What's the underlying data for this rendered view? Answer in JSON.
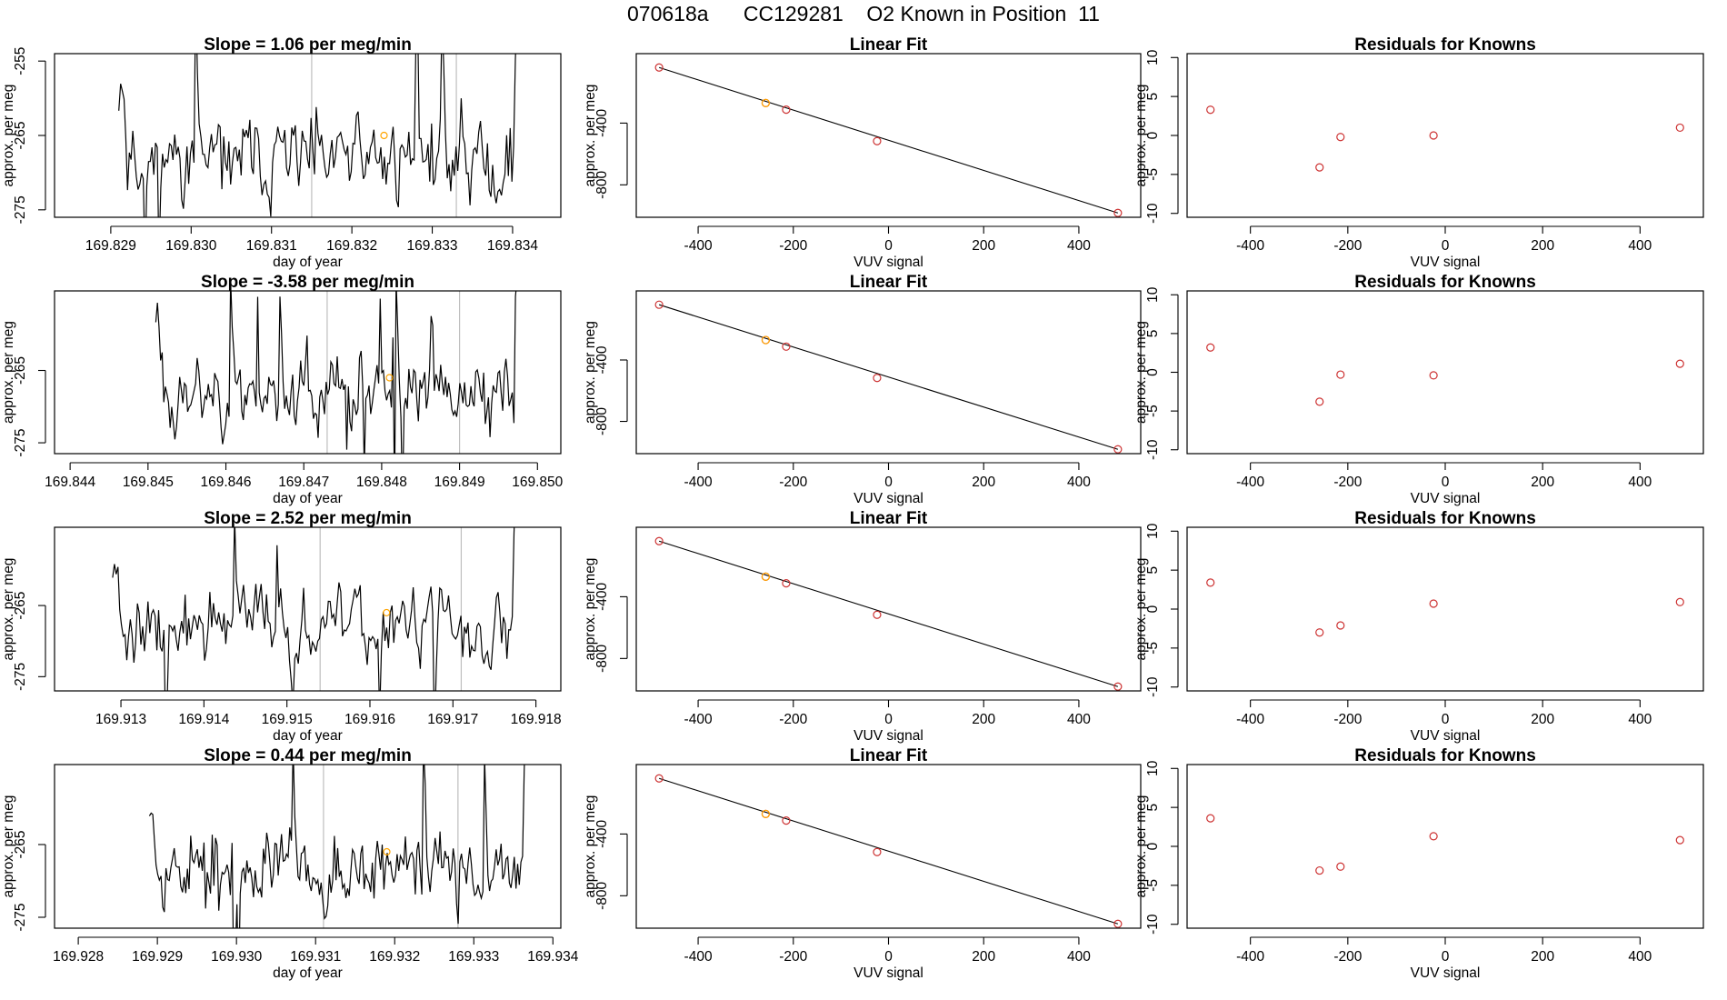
{
  "figure": {
    "title": "070618a      CC129281    O2 Known in Position  11"
  },
  "style": {
    "line_color": "#000000",
    "point_color": "#cd3333",
    "highlight_color": "#ffa500",
    "marker_color": "#bebebe"
  },
  "chart_data": [
    {
      "type": "line",
      "row": 0,
      "kind": "timeseries",
      "title": "Slope =  1.06  per meg/min",
      "xlabel": "day of year",
      "ylabel": "approx. per meg",
      "xlim": [
        169.8283,
        169.8346
      ],
      "ylim": [
        -276,
        -254
      ],
      "xticks": [
        169.829,
        169.83,
        169.831,
        169.832,
        169.833,
        169.834
      ],
      "xtick_labels": [
        "169.829",
        "169.830",
        "169.831",
        "169.832",
        "169.833",
        "169.834"
      ],
      "yticks": [
        -255,
        -265,
        -275
      ],
      "ytick_labels": [
        "-255",
        "-265",
        "-275"
      ],
      "vlines": [
        169.8315,
        169.8333
      ],
      "highlight_point": [
        169.8324,
        -265
      ],
      "trace_start": 169.8291,
      "trace_end": 169.8341,
      "seed": 11
    },
    {
      "type": "line",
      "row": 0,
      "kind": "fit",
      "title": "Linear Fit",
      "xlabel": "VUV signal",
      "ylabel": "approx. per meg",
      "xlim": [
        -530,
        530
      ],
      "ylim": [
        -1010,
        50
      ],
      "xticks": [
        -400,
        -200,
        0,
        200,
        400
      ],
      "xtick_labels": [
        "-400",
        "-200",
        "0",
        "200",
        "400"
      ],
      "yticks": [
        -400,
        -800
      ],
      "ytick_labels": [
        "-400",
        "-800"
      ],
      "x": [
        -482,
        -258,
        -215,
        -24,
        482
      ],
      "y": [
        -40,
        -270,
        -313,
        -517,
        -982
      ],
      "highlight_index": 1,
      "fit_line": [
        [
          -482,
          -40
        ],
        [
          482,
          -982
        ]
      ]
    },
    {
      "type": "scatter",
      "row": 0,
      "kind": "residual",
      "title": "Residuals for Knowns",
      "xlabel": "VUV signal",
      "ylabel": "approx. per meg",
      "xlim": [
        -530,
        530
      ],
      "ylim": [
        -10.5,
        10.5
      ],
      "xticks": [
        -400,
        -200,
        0,
        200,
        400
      ],
      "xtick_labels": [
        "-400",
        "-200",
        "0",
        "200",
        "400"
      ],
      "yticks": [
        10,
        5,
        0,
        -5,
        -10
      ],
      "ytick_labels": [
        "10",
        "5",
        "0",
        "-5",
        "-10"
      ],
      "x": [
        -482,
        -258,
        -215,
        -24,
        482
      ],
      "y": [
        3.3,
        -4.1,
        -0.2,
        0.0,
        1.0
      ]
    },
    {
      "type": "line",
      "row": 1,
      "kind": "timeseries",
      "title": "Slope =  -3.58  per meg/min",
      "xlabel": "day of year",
      "ylabel": "approx. per meg",
      "xlim": [
        169.8438,
        169.8503
      ],
      "ylim": [
        -276.5,
        -254
      ],
      "xticks": [
        169.844,
        169.845,
        169.846,
        169.847,
        169.848,
        169.849,
        169.85
      ],
      "xtick_labels": [
        "169.844",
        "169.845",
        "169.846",
        "169.847",
        "169.848",
        "169.849",
        "169.850"
      ],
      "yticks": [
        -265,
        -275
      ],
      "ytick_labels": [
        "-265",
        "-275"
      ],
      "vlines": [
        169.8473,
        169.849
      ],
      "highlight_point": [
        169.8481,
        -266
      ],
      "trace_start": 169.8451,
      "trace_end": 169.8498,
      "seed": 23
    },
    {
      "type": "line",
      "row": 1,
      "kind": "fit",
      "title": "Linear Fit",
      "xlabel": "VUV signal",
      "ylabel": "approx. per meg",
      "xlim": [
        -530,
        530
      ],
      "ylim": [
        -1010,
        50
      ],
      "xticks": [
        -400,
        -200,
        0,
        200,
        400
      ],
      "xtick_labels": [
        "-400",
        "-200",
        "0",
        "200",
        "400"
      ],
      "yticks": [
        -400,
        -800
      ],
      "ytick_labels": [
        "-400",
        "-800"
      ],
      "x": [
        -482,
        -258,
        -215,
        -24,
        482
      ],
      "y": [
        -40,
        -270,
        -313,
        -517,
        -982
      ],
      "highlight_index": 1,
      "fit_line": [
        [
          -482,
          -40
        ],
        [
          482,
          -982
        ]
      ]
    },
    {
      "type": "scatter",
      "row": 1,
      "kind": "residual",
      "title": "Residuals for Knowns",
      "xlabel": "VUV signal",
      "ylabel": "approx. per meg",
      "xlim": [
        -530,
        530
      ],
      "ylim": [
        -10.5,
        10.5
      ],
      "xticks": [
        -400,
        -200,
        0,
        200,
        400
      ],
      "xtick_labels": [
        "-400",
        "-200",
        "0",
        "200",
        "400"
      ],
      "yticks": [
        10,
        5,
        0,
        -5,
        -10
      ],
      "ytick_labels": [
        "10",
        "5",
        "0",
        "-5",
        "-10"
      ],
      "x": [
        -482,
        -258,
        -215,
        -24,
        482
      ],
      "y": [
        3.2,
        -3.8,
        -0.3,
        -0.4,
        1.1
      ]
    },
    {
      "type": "line",
      "row": 2,
      "kind": "timeseries",
      "title": "Slope =  2.52  per meg/min",
      "xlabel": "day of year",
      "ylabel": "approx. per meg",
      "xlim": [
        169.9122,
        169.9183
      ],
      "ylim": [
        -277,
        -254
      ],
      "xticks": [
        169.913,
        169.914,
        169.915,
        169.916,
        169.917,
        169.918
      ],
      "xtick_labels": [
        "169.913",
        "169.914",
        "169.915",
        "169.916",
        "169.917",
        "169.918"
      ],
      "yticks": [
        -265,
        -275
      ],
      "ytick_labels": [
        "-265",
        "-275"
      ],
      "vlines": [
        169.9154,
        169.9171
      ],
      "highlight_point": [
        169.9162,
        -266
      ],
      "trace_start": 169.9129,
      "trace_end": 169.9178,
      "seed": 37
    },
    {
      "type": "line",
      "row": 2,
      "kind": "fit",
      "title": "Linear Fit",
      "xlabel": "VUV signal",
      "ylabel": "approx. per meg",
      "xlim": [
        -530,
        530
      ],
      "ylim": [
        -1010,
        50
      ],
      "xticks": [
        -400,
        -200,
        0,
        200,
        400
      ],
      "xtick_labels": [
        "-400",
        "-200",
        "0",
        "200",
        "400"
      ],
      "yticks": [
        -400,
        -800
      ],
      "ytick_labels": [
        "-400",
        "-800"
      ],
      "x": [
        -482,
        -258,
        -215,
        -24,
        482
      ],
      "y": [
        -40,
        -270,
        -313,
        -517,
        -982
      ],
      "highlight_index": 1,
      "fit_line": [
        [
          -482,
          -40
        ],
        [
          482,
          -982
        ]
      ]
    },
    {
      "type": "scatter",
      "row": 2,
      "kind": "residual",
      "title": "Residuals for Knowns",
      "xlabel": "VUV signal",
      "ylabel": "approx. per meg",
      "xlim": [
        -530,
        530
      ],
      "ylim": [
        -10.5,
        10.5
      ],
      "xticks": [
        -400,
        -200,
        0,
        200,
        400
      ],
      "xtick_labels": [
        "-400",
        "-200",
        "0",
        "200",
        "400"
      ],
      "yticks": [
        10,
        5,
        0,
        -5,
        -10
      ],
      "ytick_labels": [
        "10",
        "5",
        "0",
        "-5",
        "-10"
      ],
      "x": [
        -482,
        -258,
        -215,
        -24,
        482
      ],
      "y": [
        3.4,
        -3.0,
        -2.1,
        0.7,
        0.9
      ]
    },
    {
      "type": "line",
      "row": 3,
      "kind": "timeseries",
      "title": "Slope =  0.44  per meg/min",
      "xlabel": "day of year",
      "ylabel": "approx. per meg",
      "xlim": [
        169.9277,
        169.9341
      ],
      "ylim": [
        -276.5,
        -254
      ],
      "xticks": [
        169.928,
        169.929,
        169.93,
        169.931,
        169.932,
        169.933,
        169.934
      ],
      "xtick_labels": [
        "169.928",
        "169.929",
        "169.930",
        "169.931",
        "169.932",
        "169.933",
        "169.934"
      ],
      "yticks": [
        -265,
        -275
      ],
      "ytick_labels": [
        "-265",
        "-275"
      ],
      "vlines": [
        169.9311,
        169.9328
      ],
      "highlight_point": [
        169.9319,
        -266
      ],
      "trace_start": 169.9289,
      "trace_end": 169.9337,
      "seed": 53
    },
    {
      "type": "line",
      "row": 3,
      "kind": "fit",
      "title": "Linear Fit",
      "xlabel": "VUV signal",
      "ylabel": "approx. per meg",
      "xlim": [
        -530,
        530
      ],
      "ylim": [
        -1010,
        50
      ],
      "xticks": [
        -400,
        -200,
        0,
        200,
        400
      ],
      "xtick_labels": [
        "-400",
        "-200",
        "0",
        "200",
        "400"
      ],
      "yticks": [
        -400,
        -800
      ],
      "ytick_labels": [
        "-400",
        "-800"
      ],
      "x": [
        -482,
        -258,
        -215,
        -24,
        482
      ],
      "y": [
        -40,
        -270,
        -313,
        -517,
        -982
      ],
      "highlight_index": 1,
      "fit_line": [
        [
          -482,
          -40
        ],
        [
          482,
          -982
        ]
      ]
    },
    {
      "type": "scatter",
      "row": 3,
      "kind": "residual",
      "title": "Residuals for Knowns",
      "xlabel": "VUV signal",
      "ylabel": "approx. per meg",
      "xlim": [
        -530,
        530
      ],
      "ylim": [
        -10.5,
        10.5
      ],
      "xticks": [
        -400,
        -200,
        0,
        200,
        400
      ],
      "xtick_labels": [
        "-400",
        "-200",
        "0",
        "200",
        "400"
      ],
      "yticks": [
        10,
        5,
        0,
        -5,
        -10
      ],
      "ytick_labels": [
        "10",
        "5",
        "0",
        "-5",
        "-10"
      ],
      "x": [
        -482,
        -258,
        -215,
        -24,
        482
      ],
      "y": [
        3.6,
        -3.1,
        -2.6,
        1.3,
        0.8
      ]
    }
  ]
}
